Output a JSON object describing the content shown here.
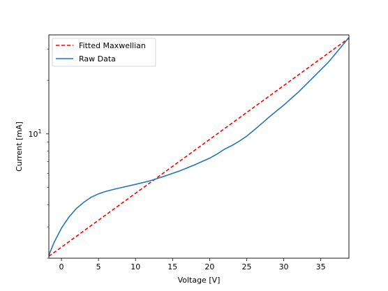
{
  "chart_data": {
    "type": "line",
    "title": "",
    "xlabel": "Voltage [V]",
    "ylabel": "Current [mA]",
    "xlim": [
      -1.7,
      38.8
    ],
    "ylim": [
      2.0,
      36.0
    ],
    "yscale": "log",
    "xticks": [
      0,
      5,
      10,
      15,
      20,
      25,
      30,
      35
    ],
    "yticks": [
      10
    ],
    "ytick_labels": [
      "10"
    ],
    "ytick_exponent": "1",
    "ytick_base": "10",
    "legend_position": "upper-left",
    "grid": false,
    "series": [
      {
        "name": "Fitted Maxwellian",
        "color": "#ff0000",
        "style": "dashed",
        "x": [
          -1.7,
          38.8
        ],
        "y": [
          2.05,
          34.5
        ]
      },
      {
        "name": "Raw Data",
        "color": "#1f77b4",
        "style": "solid",
        "x": [
          -1.7,
          -1,
          0,
          1,
          2,
          3,
          4,
          5,
          6,
          7,
          8,
          10,
          12,
          14,
          16,
          18,
          20,
          21,
          22,
          23,
          24,
          25,
          26,
          27,
          28,
          30,
          32,
          34,
          36,
          38.8
        ],
        "y": [
          2.08,
          2.45,
          2.95,
          3.4,
          3.8,
          4.12,
          4.4,
          4.6,
          4.75,
          4.87,
          4.98,
          5.2,
          5.45,
          5.8,
          6.2,
          6.7,
          7.3,
          7.7,
          8.2,
          8.6,
          9.1,
          9.7,
          10.5,
          11.4,
          12.4,
          14.5,
          17.2,
          20.8,
          25.2,
          34.8
        ]
      }
    ]
  }
}
